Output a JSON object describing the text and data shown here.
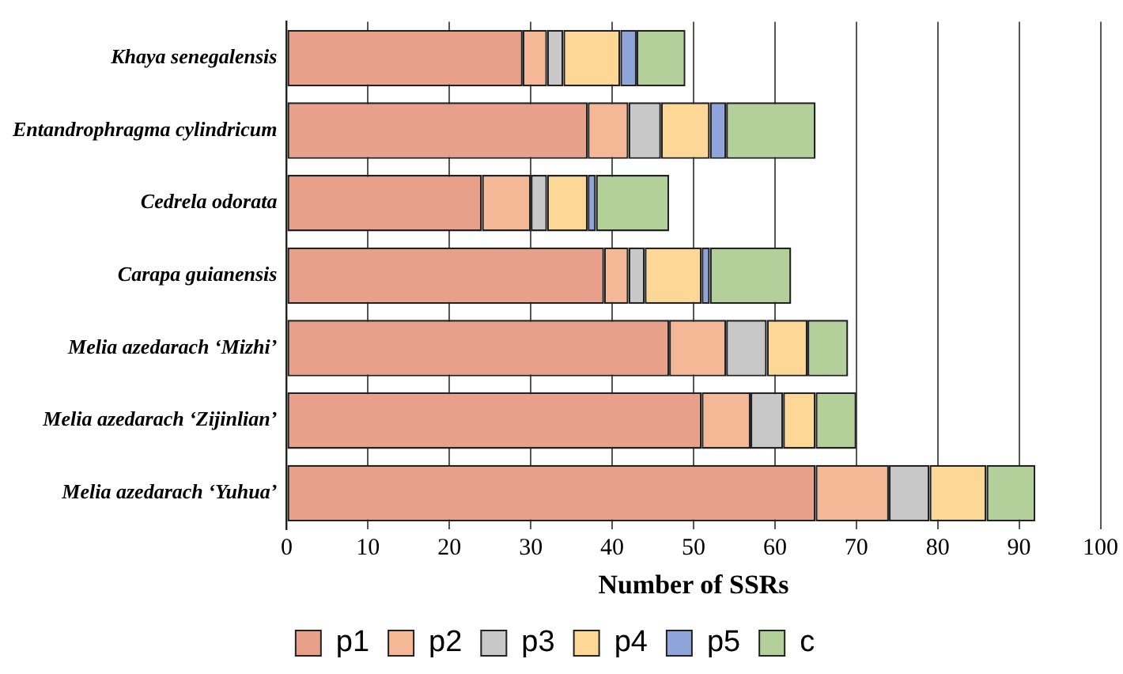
{
  "chart_data": {
    "type": "bar",
    "orientation": "horizontal",
    "stacked": true,
    "categories": [
      "Khaya senegalensis",
      "Entandrophragma cylindricum",
      "Cedrela odorata",
      "Carapa guianensis",
      "Melia azedarach ‘Mizhi’",
      "Melia azedarach ‘Zijinlian’",
      "Melia azedarach ‘Yuhua’"
    ],
    "series": [
      {
        "name": "p1",
        "color": "#e8a08a",
        "values": [
          29,
          37,
          24,
          39,
          47,
          51,
          65
        ]
      },
      {
        "name": "p2",
        "color": "#f5b896",
        "values": [
          3,
          5,
          6,
          3,
          7,
          6,
          9
        ]
      },
      {
        "name": "p3",
        "color": "#c8c8c8",
        "values": [
          2,
          4,
          2,
          2,
          5,
          4,
          5
        ]
      },
      {
        "name": "p4",
        "color": "#fdd795",
        "values": [
          7,
          6,
          5,
          7,
          5,
          4,
          7
        ]
      },
      {
        "name": "p5",
        "color": "#8fa4d8",
        "values": [
          2,
          2,
          1,
          1,
          null,
          null,
          null
        ]
      },
      {
        "name": "c",
        "color": "#b3cf9a",
        "values": [
          6,
          11,
          9,
          10,
          5,
          5,
          6
        ]
      }
    ],
    "xlabel": "Number of SSRs",
    "xlim": [
      0,
      100
    ],
    "xticks": [
      0,
      10,
      20,
      30,
      40,
      50,
      60,
      70,
      80,
      90,
      100
    ],
    "grid": "x",
    "legend": "bottom"
  }
}
